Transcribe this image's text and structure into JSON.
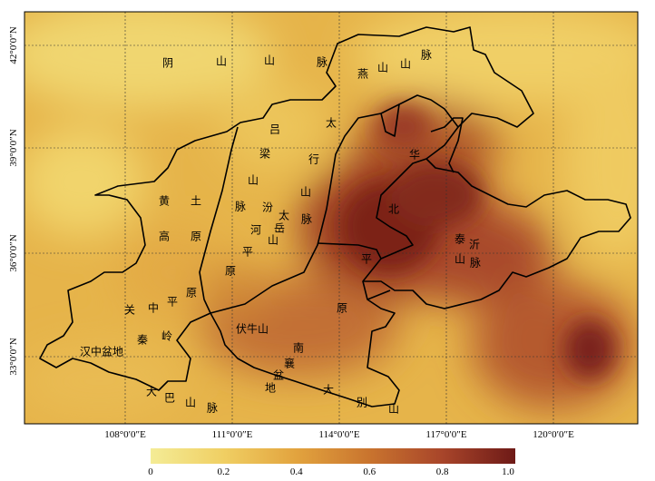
{
  "map": {
    "lon_ticks": [
      "108°0′0″E",
      "111°0′0″E",
      "114°0′0″E",
      "117°0′0″E",
      "120°0′0″E"
    ],
    "lat_ticks": [
      "42°0′0″N",
      "39°0′0″N",
      "36°0′0″N",
      "33°0′0″N"
    ],
    "colorbar": {
      "min": 0,
      "max": 1.0,
      "tick_labels": [
        "0",
        "0.2",
        "0.4",
        "0.6",
        "0.8",
        "1.0"
      ],
      "colors": [
        "#f4ec96",
        "#f0cf63",
        "#e2a33e",
        "#c9742e",
        "#a8452a",
        "#6e1a17"
      ]
    },
    "labels": [
      {
        "name": "label-yinshan-1",
        "text": "阴"
      },
      {
        "name": "label-yinshan-2",
        "text": "山"
      },
      {
        "name": "label-yinshan-3",
        "text": "山"
      },
      {
        "name": "label-yinshan-4",
        "text": "脉"
      },
      {
        "name": "label-yanshan-1",
        "text": "燕"
      },
      {
        "name": "label-yanshan-2",
        "text": "山"
      },
      {
        "name": "label-yanshan-3",
        "text": "山"
      },
      {
        "name": "label-yanshan-4",
        "text": "脉"
      },
      {
        "name": "label-taihang-1",
        "text": "太"
      },
      {
        "name": "label-taihang-2",
        "text": "行"
      },
      {
        "name": "label-taihang-3",
        "text": "山"
      },
      {
        "name": "label-taihang-4",
        "text": "脉"
      },
      {
        "name": "label-lvliang-1",
        "text": "吕"
      },
      {
        "name": "label-lvliang-2",
        "text": "梁"
      },
      {
        "name": "label-lvliang-3",
        "text": "山"
      },
      {
        "name": "label-lvliang-4",
        "text": "脉"
      },
      {
        "name": "label-fenhe-1",
        "text": "汾"
      },
      {
        "name": "label-fenhe-2",
        "text": "河"
      },
      {
        "name": "label-fenhe-3",
        "text": "平"
      },
      {
        "name": "label-fenhe-4",
        "text": "原"
      },
      {
        "name": "label-taiyue-1",
        "text": "太"
      },
      {
        "name": "label-taiyue-2",
        "text": "岳"
      },
      {
        "name": "label-taiyue-3",
        "text": "山"
      },
      {
        "name": "label-loess-1",
        "text": "黄"
      },
      {
        "name": "label-loess-2",
        "text": "土"
      },
      {
        "name": "label-loess-3",
        "text": "高"
      },
      {
        "name": "label-loess-4",
        "text": "原"
      },
      {
        "name": "label-huabei-1",
        "text": "华"
      },
      {
        "name": "label-huabei-2",
        "text": "北"
      },
      {
        "name": "label-huabei-3",
        "text": "平"
      },
      {
        "name": "label-huabei-4",
        "text": "原"
      },
      {
        "name": "label-taiyi-1",
        "text": "泰"
      },
      {
        "name": "label-taiyi-2",
        "text": "沂"
      },
      {
        "name": "label-taiyi-3",
        "text": "山"
      },
      {
        "name": "label-taiyi-4",
        "text": "脉"
      },
      {
        "name": "label-guanzhong-1",
        "text": "关"
      },
      {
        "name": "label-guanzhong-2",
        "text": "中"
      },
      {
        "name": "label-guanzhong-3",
        "text": "平"
      },
      {
        "name": "label-guanzhong-4",
        "text": "原"
      },
      {
        "name": "label-qinling-1",
        "text": "秦"
      },
      {
        "name": "label-qinling-2",
        "text": "岭"
      },
      {
        "name": "label-hanzhong",
        "text": "汉中盆地"
      },
      {
        "name": "label-funiu",
        "text": "伏牛山"
      },
      {
        "name": "label-nanxiang-1",
        "text": "南"
      },
      {
        "name": "label-nanxiang-2",
        "text": "襄"
      },
      {
        "name": "label-nanxiang-3",
        "text": "盆"
      },
      {
        "name": "label-nanxiang-4",
        "text": "地"
      },
      {
        "name": "label-daba-1",
        "text": "大"
      },
      {
        "name": "label-daba-2",
        "text": "巴"
      },
      {
        "name": "label-daba-3",
        "text": "山"
      },
      {
        "name": "label-daba-4",
        "text": "脉"
      },
      {
        "name": "label-dabie-1",
        "text": "大"
      },
      {
        "name": "label-dabie-2",
        "text": "别"
      },
      {
        "name": "label-dabie-3",
        "text": "山"
      }
    ]
  }
}
